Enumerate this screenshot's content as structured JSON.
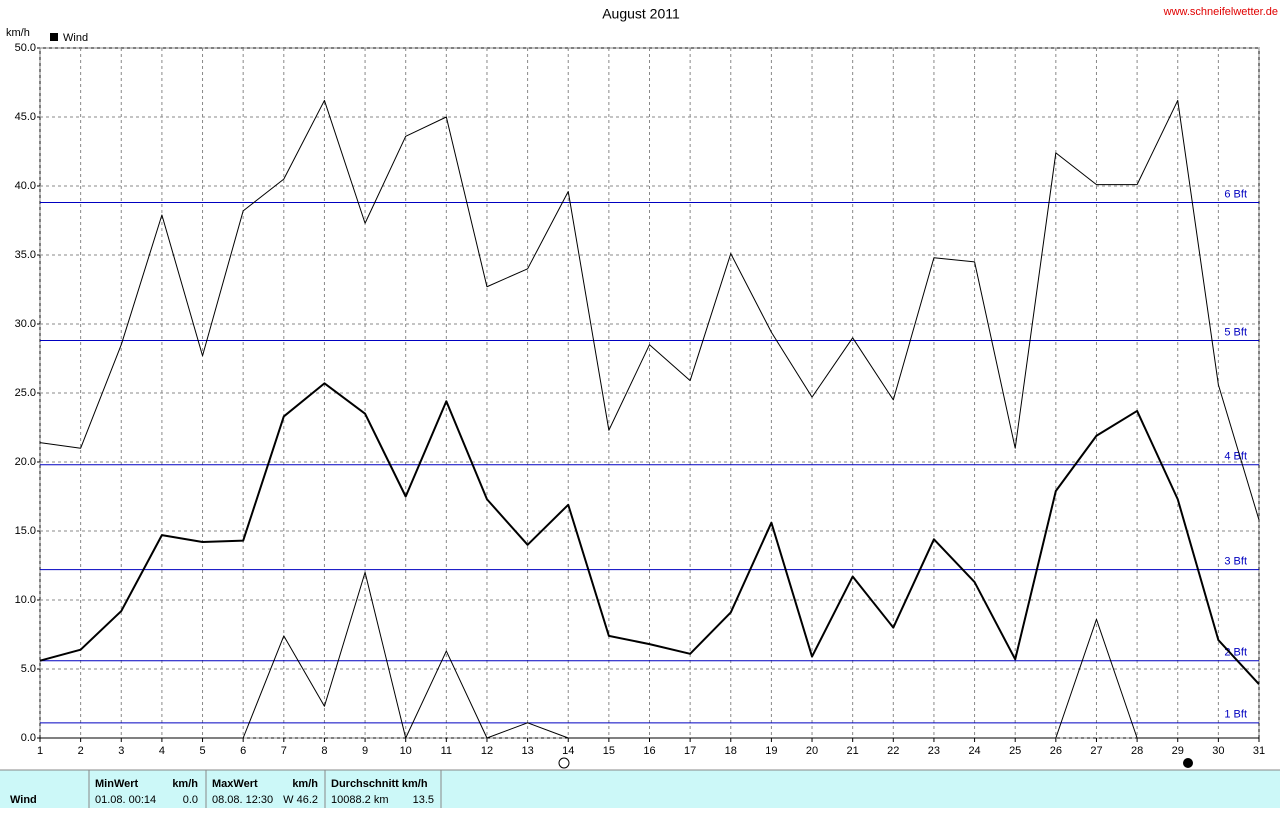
{
  "chart_data": {
    "type": "line",
    "title": "August 2011",
    "source": "www.schneifelwetter.de",
    "y_unit": "km/h",
    "x": [
      1,
      2,
      3,
      4,
      5,
      6,
      7,
      8,
      9,
      10,
      11,
      12,
      13,
      14,
      15,
      16,
      17,
      18,
      19,
      20,
      21,
      22,
      23,
      24,
      25,
      26,
      27,
      28,
      29,
      30,
      31
    ],
    "series": [
      {
        "color": "#000000",
        "width": 1,
        "values": [
          21.4,
          21.0,
          28.5,
          37.9,
          27.7,
          38.2,
          40.5,
          46.2,
          37.3,
          43.6,
          45.0,
          32.7,
          34.0,
          39.6,
          22.3,
          28.5,
          25.9,
          35.1,
          29.4,
          24.7,
          29.0,
          24.5,
          34.8,
          34.5,
          21.0,
          42.4,
          40.1,
          40.1,
          46.2,
          25.6,
          15.8
        ]
      },
      {
        "name": "Wind",
        "color": "#000000",
        "width": 2,
        "values": [
          5.6,
          6.4,
          9.2,
          14.7,
          14.2,
          14.3,
          23.3,
          25.7,
          23.5,
          17.5,
          24.4,
          17.3,
          14.0,
          16.9,
          7.4,
          6.8,
          6.1,
          9.1,
          15.6,
          5.9,
          11.7,
          8.0,
          14.4,
          11.3,
          5.7,
          17.9,
          21.9,
          23.7,
          17.3,
          7.1,
          3.9
        ]
      },
      {
        "color": "#000000",
        "width": 1,
        "values": [
          0,
          0,
          0,
          0,
          0,
          0,
          7.4,
          2.3,
          12.0,
          0,
          6.3,
          0,
          1.1,
          0,
          0,
          0,
          0,
          0,
          0,
          0,
          0,
          0,
          0,
          0,
          0,
          0,
          8.6,
          0,
          0,
          0,
          0
        ]
      }
    ],
    "xlim": [
      1,
      31
    ],
    "xticks": [
      1,
      2,
      3,
      4,
      5,
      6,
      7,
      8,
      9,
      10,
      11,
      12,
      13,
      14,
      15,
      16,
      17,
      18,
      19,
      20,
      21,
      22,
      23,
      24,
      25,
      26,
      27,
      28,
      29,
      30,
      31
    ],
    "ylim": [
      0,
      50
    ],
    "yticks": [
      {
        "value": 0,
        "label": "0.0"
      },
      {
        "value": 5,
        "label": "5.0"
      },
      {
        "value": 10,
        "label": "10.0"
      },
      {
        "value": 15,
        "label": "15.0"
      },
      {
        "value": 20,
        "label": "20.0"
      },
      {
        "value": 25,
        "label": "25.0"
      },
      {
        "value": 30,
        "label": "30.0"
      },
      {
        "value": 35,
        "label": "35.0"
      },
      {
        "value": 40,
        "label": "40.0"
      },
      {
        "value": 45,
        "label": "45.0"
      },
      {
        "value": 50,
        "label": "50.0"
      }
    ],
    "grid": true,
    "reference_lines": [
      {
        "value": 1.1,
        "label": "1 Bft"
      },
      {
        "value": 5.6,
        "label": "2 Bft"
      },
      {
        "value": 12.2,
        "label": "3 Bft"
      },
      {
        "value": 19.8,
        "label": "4 Bft"
      },
      {
        "value": 28.8,
        "label": "5 Bft"
      },
      {
        "value": 38.8,
        "label": "6 Bft"
      }
    ],
    "reference_color": "#0000c0"
  },
  "summary_table": {
    "row_label": "Wind",
    "headers": [
      "MinWert",
      "km/h",
      "MaxWert",
      "km/h",
      "Durchschnitt km/h"
    ],
    "cells": [
      "01.08.  00:14",
      "0.0",
      "08.08.  12:30",
      "W 46.2",
      "10088.2 km",
      "13.5"
    ]
  }
}
